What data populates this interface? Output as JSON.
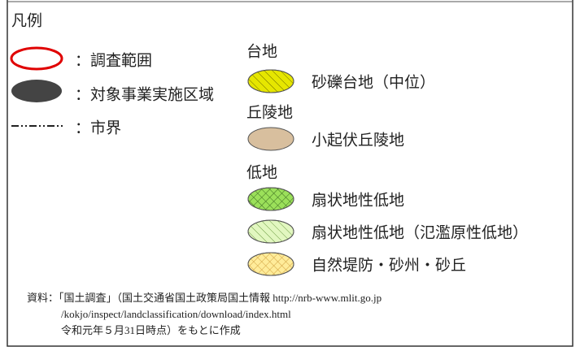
{
  "legend": {
    "title": "凡例",
    "boundaries": [
      "：調査範囲",
      "：対象事業実施区域",
      "：市界"
    ],
    "groups": [
      {
        "name": "台地",
        "items": [
          "砂礫台地（中位）"
        ]
      },
      {
        "name": "丘陵地",
        "items": [
          "小起伏丘陵地"
        ]
      },
      {
        "name": "低地",
        "items": [
          "扇状地性低地",
          "扇状地性低地（氾濫原性低地）",
          "自然堤防・砂州・砂丘"
        ]
      }
    ],
    "notes": [
      "資料：「国土調査」（国土交通省国土政策局国土情報 http://nrb-www.mlit.go.jp",
      "/kokjo/inspect/landclassification/download/index.html",
      "令和元年５月31日時点）をもとに作成"
    ]
  }
}
